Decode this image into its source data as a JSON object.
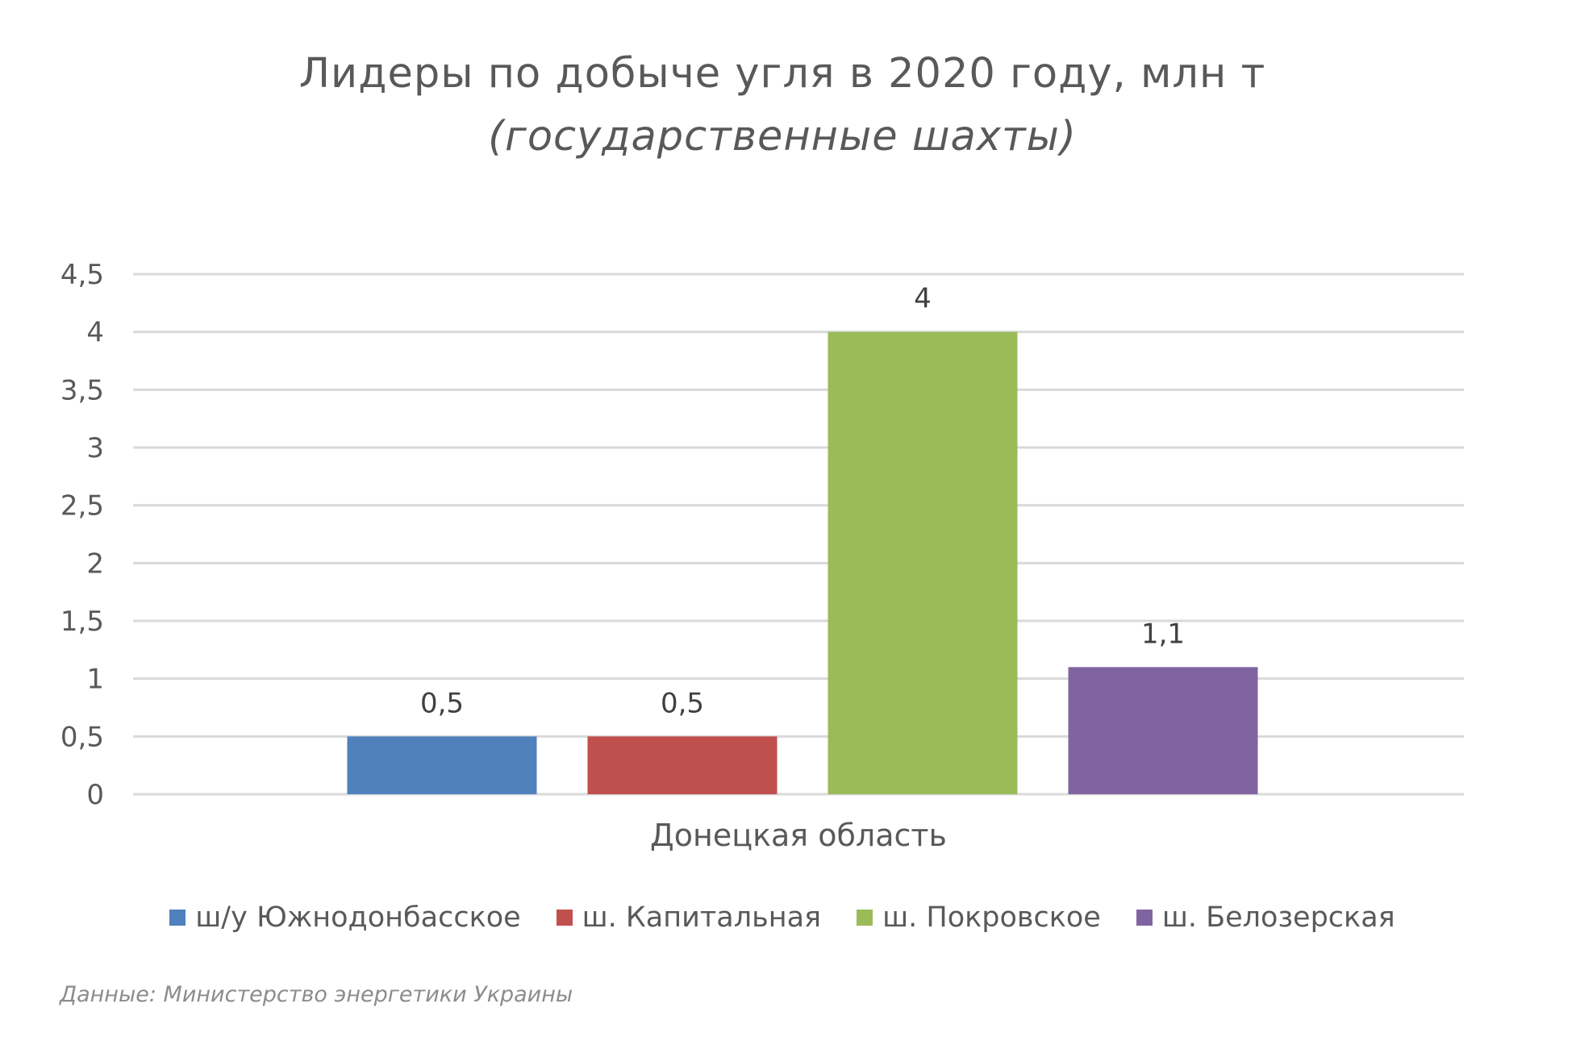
{
  "chart_data": {
    "type": "bar",
    "title": "Лидеры по добыче угля в 2020 году, млн т",
    "subtitle": "(государственные шахты)",
    "categories": [
      "Донецкая область"
    ],
    "series": [
      {
        "name": "ш/у Южнодонбасское",
        "values": [
          0.5
        ],
        "label": "0,5",
        "color": "#4F81BD"
      },
      {
        "name": "ш. Капитальная",
        "values": [
          0.5
        ],
        "label": "0,5",
        "color": "#C0504D"
      },
      {
        "name": "ш. Покровское",
        "values": [
          4
        ],
        "label": "4",
        "color": "#9BBB59"
      },
      {
        "name": "ш. Белозерская",
        "values": [
          1.1
        ],
        "label": "1,1",
        "color": "#8064A2"
      }
    ],
    "yticks": [
      {
        "value": 0,
        "label": "0"
      },
      {
        "value": 0.5,
        "label": "0,5"
      },
      {
        "value": 1,
        "label": "1"
      },
      {
        "value": 1.5,
        "label": "1,5"
      },
      {
        "value": 2,
        "label": "2"
      },
      {
        "value": 2.5,
        "label": "2,5"
      },
      {
        "value": 3,
        "label": "3"
      },
      {
        "value": 3.5,
        "label": "3,5"
      },
      {
        "value": 4,
        "label": "4"
      },
      {
        "value": 4.5,
        "label": "4,5"
      }
    ],
    "ylim": [
      0,
      4.5
    ],
    "grid": true,
    "legend_position": "bottom",
    "source": "Данные: Министерство энергетики Украины"
  }
}
